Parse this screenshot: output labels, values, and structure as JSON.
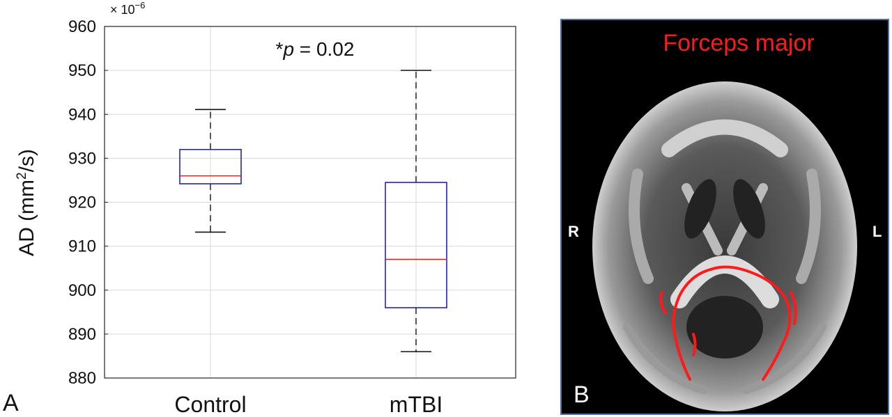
{
  "chart_data": {
    "type": "box",
    "categories": [
      "Control",
      "mTBI"
    ],
    "ylabel_main": "AD (mm",
    "ylabel_sup": "2",
    "ylabel_end": "/s)",
    "y_multiplier": "× 10",
    "y_multiplier_exp": "−6",
    "ylim": [
      880,
      960
    ],
    "yticks": [
      880,
      890,
      900,
      910,
      920,
      930,
      940,
      950,
      960
    ],
    "grid": true,
    "annotation_star": "*",
    "annotation_p": "p",
    "annotation_rest": " = 0.02",
    "boxes": [
      {
        "name": "Control",
        "whisker_low": 913.2,
        "q1": 924.2,
        "median": 926,
        "q3": 932,
        "whisker_high": 941.1
      },
      {
        "name": "mTBI",
        "whisker_low": 886,
        "q1": 896,
        "median": 907,
        "q3": 924.5,
        "whisker_high": 950
      }
    ],
    "colors": {
      "box": "#2222bb",
      "median": "#e02020",
      "whisker": "#111111",
      "grid": "#d9d9d9"
    }
  },
  "panels": {
    "a": "A",
    "b": "B"
  },
  "brain": {
    "title": "Forceps major",
    "left_side": "R",
    "right_side": "L",
    "tract_color": "#ff1a1a"
  }
}
